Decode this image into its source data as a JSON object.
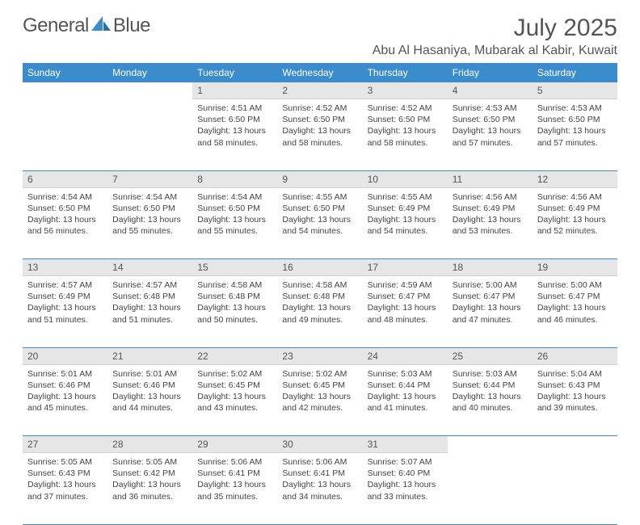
{
  "colors": {
    "accent": "#3b8ccb",
    "header_text": "#ffffff",
    "daynum_bg": "#e6e6e6",
    "text": "#444444",
    "title": "#555555"
  },
  "logo": {
    "part1": "General",
    "part2": "Blue"
  },
  "header": {
    "month_title": "July 2025",
    "location": "Abu Al Hasaniya, Mubarak al Kabir, Kuwait"
  },
  "weekdays": [
    "Sunday",
    "Monday",
    "Tuesday",
    "Wednesday",
    "Thursday",
    "Friday",
    "Saturday"
  ],
  "weeks": [
    [
      {
        "day": "",
        "sunrise": "",
        "sunset": "",
        "daylight": ""
      },
      {
        "day": "",
        "sunrise": "",
        "sunset": "",
        "daylight": ""
      },
      {
        "day": "1",
        "sunrise": "Sunrise: 4:51 AM",
        "sunset": "Sunset: 6:50 PM",
        "daylight": "Daylight: 13 hours and 58 minutes."
      },
      {
        "day": "2",
        "sunrise": "Sunrise: 4:52 AM",
        "sunset": "Sunset: 6:50 PM",
        "daylight": "Daylight: 13 hours and 58 minutes."
      },
      {
        "day": "3",
        "sunrise": "Sunrise: 4:52 AM",
        "sunset": "Sunset: 6:50 PM",
        "daylight": "Daylight: 13 hours and 58 minutes."
      },
      {
        "day": "4",
        "sunrise": "Sunrise: 4:53 AM",
        "sunset": "Sunset: 6:50 PM",
        "daylight": "Daylight: 13 hours and 57 minutes."
      },
      {
        "day": "5",
        "sunrise": "Sunrise: 4:53 AM",
        "sunset": "Sunset: 6:50 PM",
        "daylight": "Daylight: 13 hours and 57 minutes."
      }
    ],
    [
      {
        "day": "6",
        "sunrise": "Sunrise: 4:54 AM",
        "sunset": "Sunset: 6:50 PM",
        "daylight": "Daylight: 13 hours and 56 minutes."
      },
      {
        "day": "7",
        "sunrise": "Sunrise: 4:54 AM",
        "sunset": "Sunset: 6:50 PM",
        "daylight": "Daylight: 13 hours and 55 minutes."
      },
      {
        "day": "8",
        "sunrise": "Sunrise: 4:54 AM",
        "sunset": "Sunset: 6:50 PM",
        "daylight": "Daylight: 13 hours and 55 minutes."
      },
      {
        "day": "9",
        "sunrise": "Sunrise: 4:55 AM",
        "sunset": "Sunset: 6:50 PM",
        "daylight": "Daylight: 13 hours and 54 minutes."
      },
      {
        "day": "10",
        "sunrise": "Sunrise: 4:55 AM",
        "sunset": "Sunset: 6:49 PM",
        "daylight": "Daylight: 13 hours and 54 minutes."
      },
      {
        "day": "11",
        "sunrise": "Sunrise: 4:56 AM",
        "sunset": "Sunset: 6:49 PM",
        "daylight": "Daylight: 13 hours and 53 minutes."
      },
      {
        "day": "12",
        "sunrise": "Sunrise: 4:56 AM",
        "sunset": "Sunset: 6:49 PM",
        "daylight": "Daylight: 13 hours and 52 minutes."
      }
    ],
    [
      {
        "day": "13",
        "sunrise": "Sunrise: 4:57 AM",
        "sunset": "Sunset: 6:49 PM",
        "daylight": "Daylight: 13 hours and 51 minutes."
      },
      {
        "day": "14",
        "sunrise": "Sunrise: 4:57 AM",
        "sunset": "Sunset: 6:48 PM",
        "daylight": "Daylight: 13 hours and 51 minutes."
      },
      {
        "day": "15",
        "sunrise": "Sunrise: 4:58 AM",
        "sunset": "Sunset: 6:48 PM",
        "daylight": "Daylight: 13 hours and 50 minutes."
      },
      {
        "day": "16",
        "sunrise": "Sunrise: 4:58 AM",
        "sunset": "Sunset: 6:48 PM",
        "daylight": "Daylight: 13 hours and 49 minutes."
      },
      {
        "day": "17",
        "sunrise": "Sunrise: 4:59 AM",
        "sunset": "Sunset: 6:47 PM",
        "daylight": "Daylight: 13 hours and 48 minutes."
      },
      {
        "day": "18",
        "sunrise": "Sunrise: 5:00 AM",
        "sunset": "Sunset: 6:47 PM",
        "daylight": "Daylight: 13 hours and 47 minutes."
      },
      {
        "day": "19",
        "sunrise": "Sunrise: 5:00 AM",
        "sunset": "Sunset: 6:47 PM",
        "daylight": "Daylight: 13 hours and 46 minutes."
      }
    ],
    [
      {
        "day": "20",
        "sunrise": "Sunrise: 5:01 AM",
        "sunset": "Sunset: 6:46 PM",
        "daylight": "Daylight: 13 hours and 45 minutes."
      },
      {
        "day": "21",
        "sunrise": "Sunrise: 5:01 AM",
        "sunset": "Sunset: 6:46 PM",
        "daylight": "Daylight: 13 hours and 44 minutes."
      },
      {
        "day": "22",
        "sunrise": "Sunrise: 5:02 AM",
        "sunset": "Sunset: 6:45 PM",
        "daylight": "Daylight: 13 hours and 43 minutes."
      },
      {
        "day": "23",
        "sunrise": "Sunrise: 5:02 AM",
        "sunset": "Sunset: 6:45 PM",
        "daylight": "Daylight: 13 hours and 42 minutes."
      },
      {
        "day": "24",
        "sunrise": "Sunrise: 5:03 AM",
        "sunset": "Sunset: 6:44 PM",
        "daylight": "Daylight: 13 hours and 41 minutes."
      },
      {
        "day": "25",
        "sunrise": "Sunrise: 5:03 AM",
        "sunset": "Sunset: 6:44 PM",
        "daylight": "Daylight: 13 hours and 40 minutes."
      },
      {
        "day": "26",
        "sunrise": "Sunrise: 5:04 AM",
        "sunset": "Sunset: 6:43 PM",
        "daylight": "Daylight: 13 hours and 39 minutes."
      }
    ],
    [
      {
        "day": "27",
        "sunrise": "Sunrise: 5:05 AM",
        "sunset": "Sunset: 6:43 PM",
        "daylight": "Daylight: 13 hours and 37 minutes."
      },
      {
        "day": "28",
        "sunrise": "Sunrise: 5:05 AM",
        "sunset": "Sunset: 6:42 PM",
        "daylight": "Daylight: 13 hours and 36 minutes."
      },
      {
        "day": "29",
        "sunrise": "Sunrise: 5:06 AM",
        "sunset": "Sunset: 6:41 PM",
        "daylight": "Daylight: 13 hours and 35 minutes."
      },
      {
        "day": "30",
        "sunrise": "Sunrise: 5:06 AM",
        "sunset": "Sunset: 6:41 PM",
        "daylight": "Daylight: 13 hours and 34 minutes."
      },
      {
        "day": "31",
        "sunrise": "Sunrise: 5:07 AM",
        "sunset": "Sunset: 6:40 PM",
        "daylight": "Daylight: 13 hours and 33 minutes."
      },
      {
        "day": "",
        "sunrise": "",
        "sunset": "",
        "daylight": ""
      },
      {
        "day": "",
        "sunrise": "",
        "sunset": "",
        "daylight": ""
      }
    ]
  ]
}
